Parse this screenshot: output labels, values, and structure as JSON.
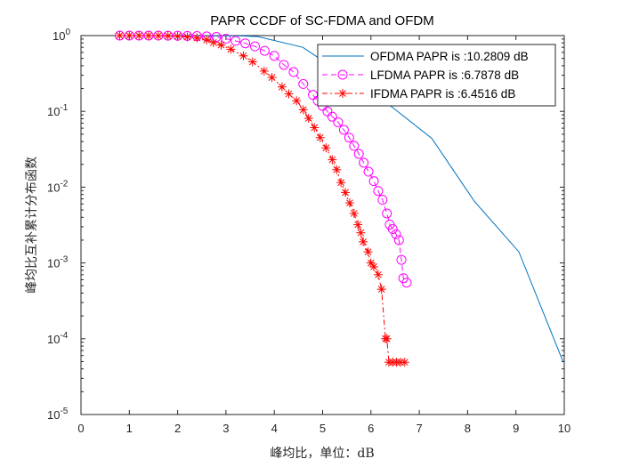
{
  "chart_data": {
    "type": "line",
    "title": "PAPR CCDF of SC-FDMA and OFDM",
    "xlabel": "峰均比，单位：dB",
    "ylabel": "峰均比互补累计分布函数",
    "xlim": [
      0,
      10
    ],
    "ylim": [
      1e-05,
      1
    ],
    "yscale": "log",
    "grid": false,
    "legend_position": "top-right",
    "xticks": [
      "0",
      "1",
      "2",
      "3",
      "4",
      "5",
      "6",
      "7",
      "8",
      "9",
      "10"
    ],
    "yticks": [
      {
        "base": "10",
        "exp": "0"
      },
      {
        "base": "10",
        "exp": "-1"
      },
      {
        "base": "10",
        "exp": "-2"
      },
      {
        "base": "10",
        "exp": "-3"
      },
      {
        "base": "10",
        "exp": "-4"
      },
      {
        "base": "10",
        "exp": "-5"
      }
    ],
    "series": [
      {
        "name": "OFDMA PAPR is :10.2809 dB",
        "color": "#0072BD",
        "style": "solid",
        "marker": "none",
        "x": [
          0.8,
          2.0,
          3.3,
          3.66,
          4.59,
          6.43,
          7.26,
          8.14,
          9.06,
          9.98
        ],
        "y": [
          1.0,
          0.999,
          0.99,
          0.97,
          0.7,
          0.115,
          0.044,
          0.0065,
          0.0014,
          4.9e-05
        ]
      },
      {
        "name": "LFDMA PAPR is :6.7878 dB",
        "color": "#FF00FF",
        "style": "dashed",
        "marker": "circle",
        "x": [
          0.8,
          1.0,
          1.2,
          1.4,
          1.6,
          1.8,
          2.0,
          2.2,
          2.4,
          2.6,
          2.8,
          3.0,
          3.2,
          3.4,
          3.6,
          3.8,
          4.0,
          4.2,
          4.4,
          4.6,
          4.8,
          4.9,
          5.0,
          5.1,
          5.2,
          5.32,
          5.44,
          5.55,
          5.65,
          5.75,
          5.85,
          5.95,
          6.06,
          6.15,
          6.24,
          6.33,
          6.39,
          6.45,
          6.52,
          6.58,
          6.63,
          6.67,
          6.74
        ],
        "y": [
          1.0,
          1.0,
          1.0,
          1.0,
          0.999,
          0.998,
          0.995,
          0.99,
          0.985,
          0.975,
          0.96,
          0.91,
          0.85,
          0.79,
          0.72,
          0.63,
          0.54,
          0.41,
          0.33,
          0.23,
          0.165,
          0.138,
          0.118,
          0.1,
          0.085,
          0.072,
          0.057,
          0.045,
          0.035,
          0.0275,
          0.021,
          0.016,
          0.012,
          0.0089,
          0.0068,
          0.0045,
          0.0032,
          0.0028,
          0.0024,
          0.002,
          0.0011,
          0.00063,
          0.00055
        ]
      },
      {
        "name": "IFDMA PAPR is :6.4516 dB",
        "color": "#FF0000",
        "style": "dashdot",
        "marker": "asterisk",
        "x": [
          0.8,
          1.0,
          1.2,
          1.4,
          1.6,
          1.8,
          2.0,
          2.2,
          2.4,
          2.6,
          2.74,
          2.9,
          3.1,
          3.36,
          3.55,
          3.79,
          3.95,
          4.16,
          4.3,
          4.46,
          4.6,
          4.71,
          4.83,
          4.95,
          5.07,
          5.2,
          5.29,
          5.38,
          5.47,
          5.56,
          5.65,
          5.73,
          5.79,
          5.84,
          5.94,
          6.0,
          6.06,
          6.15,
          6.22,
          6.3,
          6.33,
          6.37,
          6.45,
          6.53,
          6.61,
          6.7
        ],
        "y": [
          1.0,
          1.0,
          0.999,
          0.998,
          0.995,
          0.99,
          0.98,
          0.96,
          0.93,
          0.88,
          0.81,
          0.75,
          0.66,
          0.54,
          0.45,
          0.34,
          0.28,
          0.21,
          0.17,
          0.138,
          0.105,
          0.081,
          0.061,
          0.045,
          0.033,
          0.023,
          0.017,
          0.0115,
          0.0085,
          0.0062,
          0.0045,
          0.0032,
          0.0025,
          0.0019,
          0.0014,
          0.001,
          0.00089,
          0.0007,
          0.00045,
          0.0001,
          0.0001,
          4.9e-05,
          4.9e-05,
          4.9e-05,
          4.9e-05,
          4.9e-05
        ]
      }
    ]
  }
}
